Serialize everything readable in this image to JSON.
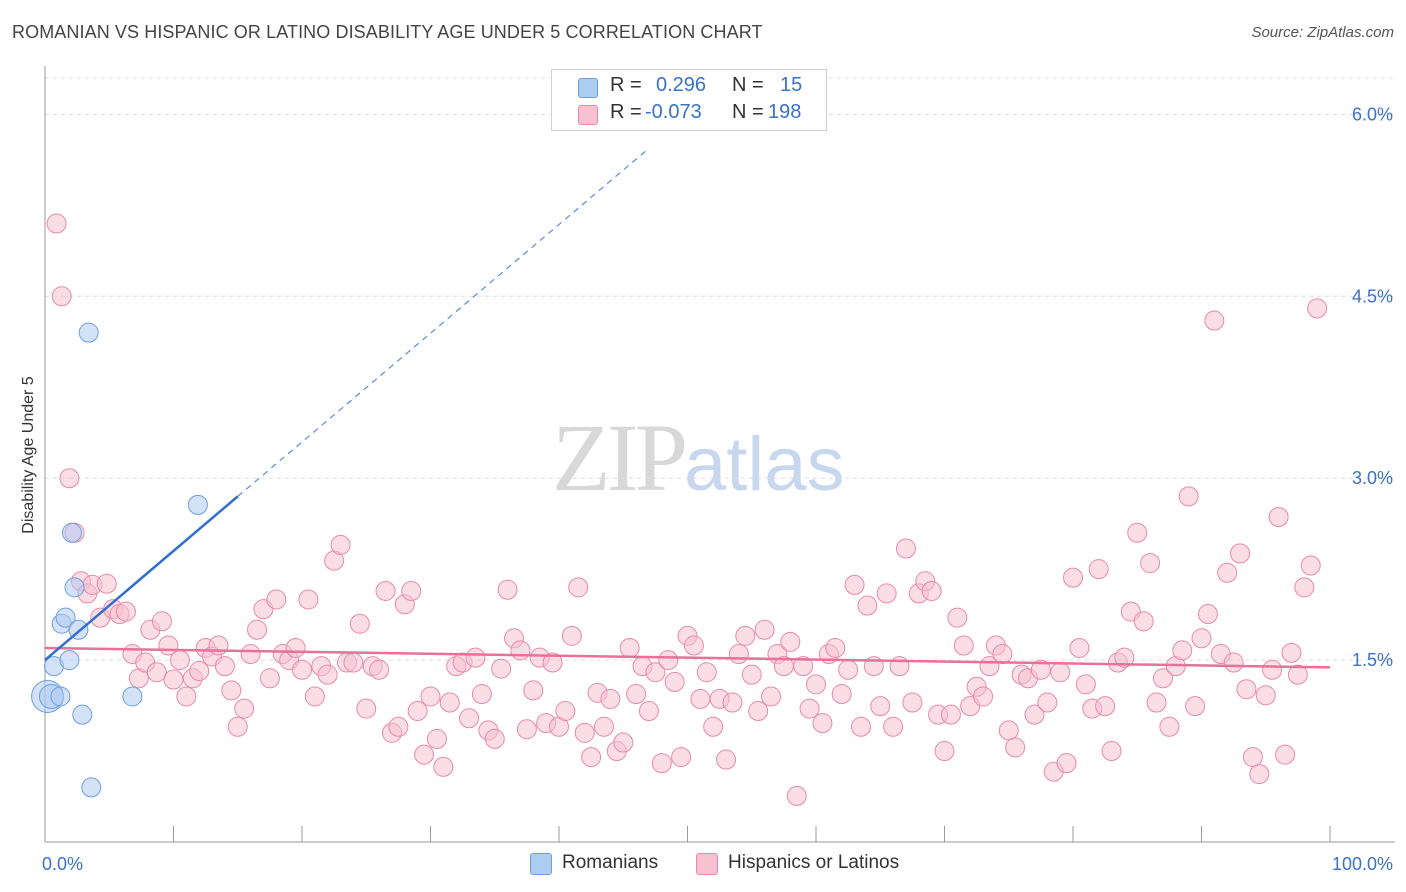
{
  "title": "ROMANIAN VS HISPANIC OR LATINO DISABILITY AGE UNDER 5 CORRELATION CHART",
  "source": "Source: ZipAtlas.com",
  "watermark": {
    "zip": "ZIP",
    "atlas": "atlas"
  },
  "stats": [
    {
      "r_label": "R =",
      "r_value": "0.296",
      "n_label": "N =",
      "n_value": "15",
      "color": "#aecbf0",
      "border": "#6d9fe0"
    },
    {
      "r_label": "R =",
      "r_value": "-0.073",
      "n_label": "N =",
      "n_value": "198",
      "color": "#f7c1d1",
      "border": "#e88aa8"
    }
  ],
  "legend": [
    {
      "label": "Romanians",
      "color": "#aecbf0",
      "border": "#6d9fe0"
    },
    {
      "label": "Hispanics or Latinos",
      "color": "#f7c1d1",
      "border": "#e88aa8"
    }
  ],
  "chart_data": {
    "type": "scatter",
    "title": "ROMANIAN VS HISPANIC OR LATINO DISABILITY AGE UNDER 5 CORRELATION CHART",
    "xlabel": "",
    "ylabel": "Disability Age Under 5",
    "xlim": [
      0,
      100
    ],
    "ylim": [
      0.0,
      6.3
    ],
    "x_tick_labels": [
      "0.0%",
      "100.0%"
    ],
    "y_ticks": [
      1.5,
      3.0,
      4.5,
      6.0
    ],
    "y_tick_labels": [
      "1.5%",
      "3.0%",
      "4.5%",
      "6.0%"
    ],
    "grid": "horizontal dashed",
    "series": [
      {
        "name": "Romanians",
        "color": "#aecbf0",
        "edge": "#6d9fe0",
        "trend": {
          "x0": 0,
          "y0": 1.5,
          "x1": 15,
          "y1": 2.85,
          "dashed_to_x": 47,
          "dashed_to_y": 5.72,
          "color": "#2f6fd1"
        },
        "points": [
          {
            "x": 0.2,
            "y": 1.2,
            "size": 16
          },
          {
            "x": 0.5,
            "y": 1.2,
            "size": 12
          },
          {
            "x": 0.7,
            "y": 1.45
          },
          {
            "x": 1.2,
            "y": 1.2
          },
          {
            "x": 1.3,
            "y": 1.8
          },
          {
            "x": 1.6,
            "y": 1.85
          },
          {
            "x": 1.9,
            "y": 1.5
          },
          {
            "x": 2.1,
            "y": 2.55
          },
          {
            "x": 2.3,
            "y": 2.1
          },
          {
            "x": 2.6,
            "y": 1.75
          },
          {
            "x": 2.9,
            "y": 1.05
          },
          {
            "x": 3.4,
            "y": 4.2
          },
          {
            "x": 3.6,
            "y": 0.45
          },
          {
            "x": 6.8,
            "y": 1.2
          },
          {
            "x": 11.9,
            "y": 2.78
          }
        ]
      },
      {
        "name": "Hispanics or Latinos",
        "color": "#f7c1d1",
        "edge": "#e88aa8",
        "trend": {
          "x0": 0,
          "y0": 1.6,
          "x1": 100,
          "y1": 1.44,
          "color": "#e8709a"
        },
        "points": [
          {
            "x": 0.9,
            "y": 5.1
          },
          {
            "x": 1.3,
            "y": 4.5
          },
          {
            "x": 1.9,
            "y": 3.0
          },
          {
            "x": 2.3,
            "y": 2.55
          },
          {
            "x": 2.8,
            "y": 2.15
          },
          {
            "x": 3.3,
            "y": 2.05
          },
          {
            "x": 3.7,
            "y": 2.12
          },
          {
            "x": 4.3,
            "y": 1.85
          },
          {
            "x": 4.8,
            "y": 2.13
          },
          {
            "x": 5.3,
            "y": 1.92
          },
          {
            "x": 5.8,
            "y": 1.88
          },
          {
            "x": 6.3,
            "y": 1.9
          },
          {
            "x": 6.8,
            "y": 1.55
          },
          {
            "x": 7.3,
            "y": 1.35
          },
          {
            "x": 7.8,
            "y": 1.48
          },
          {
            "x": 8.2,
            "y": 1.75
          },
          {
            "x": 8.7,
            "y": 1.4
          },
          {
            "x": 9.1,
            "y": 1.82
          },
          {
            "x": 9.6,
            "y": 1.62
          },
          {
            "x": 10.0,
            "y": 1.34
          },
          {
            "x": 10.5,
            "y": 1.5
          },
          {
            "x": 11.0,
            "y": 1.2
          },
          {
            "x": 11.5,
            "y": 1.35
          },
          {
            "x": 12.0,
            "y": 1.41
          },
          {
            "x": 12.5,
            "y": 1.6
          },
          {
            "x": 13.0,
            "y": 1.53
          },
          {
            "x": 13.5,
            "y": 1.62
          },
          {
            "x": 14.0,
            "y": 1.45
          },
          {
            "x": 14.5,
            "y": 1.25
          },
          {
            "x": 15.0,
            "y": 0.95
          },
          {
            "x": 15.5,
            "y": 1.1
          },
          {
            "x": 16.0,
            "y": 1.55
          },
          {
            "x": 16.5,
            "y": 1.75
          },
          {
            "x": 17.0,
            "y": 1.92
          },
          {
            "x": 17.5,
            "y": 1.35
          },
          {
            "x": 18.0,
            "y": 2.0
          },
          {
            "x": 18.5,
            "y": 1.55
          },
          {
            "x": 19.0,
            "y": 1.5
          },
          {
            "x": 19.5,
            "y": 1.6
          },
          {
            "x": 20.0,
            "y": 1.42
          },
          {
            "x": 20.5,
            "y": 2.0
          },
          {
            "x": 21.0,
            "y": 1.2
          },
          {
            "x": 21.5,
            "y": 1.45
          },
          {
            "x": 22.0,
            "y": 1.38
          },
          {
            "x": 22.5,
            "y": 2.32
          },
          {
            "x": 23.0,
            "y": 2.45
          },
          {
            "x": 23.5,
            "y": 1.48
          },
          {
            "x": 24.0,
            "y": 1.48
          },
          {
            "x": 24.5,
            "y": 1.8
          },
          {
            "x": 25.0,
            "y": 1.1
          },
          {
            "x": 25.5,
            "y": 1.45
          },
          {
            "x": 26.0,
            "y": 1.42
          },
          {
            "x": 26.5,
            "y": 2.07
          },
          {
            "x": 27.0,
            "y": 0.9
          },
          {
            "x": 27.5,
            "y": 0.95
          },
          {
            "x": 28.0,
            "y": 1.96
          },
          {
            "x": 28.5,
            "y": 2.07
          },
          {
            "x": 29.0,
            "y": 1.08
          },
          {
            "x": 29.5,
            "y": 0.72
          },
          {
            "x": 30.0,
            "y": 1.2
          },
          {
            "x": 30.5,
            "y": 0.85
          },
          {
            "x": 31.0,
            "y": 0.62
          },
          {
            "x": 31.5,
            "y": 1.15
          },
          {
            "x": 32.0,
            "y": 1.45
          },
          {
            "x": 32.5,
            "y": 1.48
          },
          {
            "x": 33.0,
            "y": 1.02
          },
          {
            "x": 33.5,
            "y": 1.52
          },
          {
            "x": 34.0,
            "y": 1.22
          },
          {
            "x": 34.5,
            "y": 0.92
          },
          {
            "x": 35.0,
            "y": 0.85
          },
          {
            "x": 35.5,
            "y": 1.43
          },
          {
            "x": 36.0,
            "y": 2.08
          },
          {
            "x": 36.5,
            "y": 1.68
          },
          {
            "x": 37.0,
            "y": 1.58
          },
          {
            "x": 37.5,
            "y": 0.93
          },
          {
            "x": 38.0,
            "y": 1.25
          },
          {
            "x": 38.5,
            "y": 1.52
          },
          {
            "x": 39.0,
            "y": 0.98
          },
          {
            "x": 39.5,
            "y": 1.48
          },
          {
            "x": 40.0,
            "y": 0.95
          },
          {
            "x": 40.5,
            "y": 1.08
          },
          {
            "x": 41.0,
            "y": 1.7
          },
          {
            "x": 41.5,
            "y": 2.1
          },
          {
            "x": 42.0,
            "y": 0.9
          },
          {
            "x": 42.5,
            "y": 0.7
          },
          {
            "x": 43.0,
            "y": 1.23
          },
          {
            "x": 43.5,
            "y": 0.95
          },
          {
            "x": 44.0,
            "y": 1.18
          },
          {
            "x": 44.5,
            "y": 0.75
          },
          {
            "x": 45.0,
            "y": 0.82
          },
          {
            "x": 45.5,
            "y": 1.6
          },
          {
            "x": 46.0,
            "y": 1.22
          },
          {
            "x": 46.5,
            "y": 1.45
          },
          {
            "x": 47.0,
            "y": 1.08
          },
          {
            "x": 47.5,
            "y": 1.4
          },
          {
            "x": 48.0,
            "y": 0.65
          },
          {
            "x": 48.5,
            "y": 1.5
          },
          {
            "x": 49.0,
            "y": 1.32
          },
          {
            "x": 49.5,
            "y": 0.7
          },
          {
            "x": 50.0,
            "y": 1.7
          },
          {
            "x": 50.5,
            "y": 1.62
          },
          {
            "x": 51.0,
            "y": 1.18
          },
          {
            "x": 51.5,
            "y": 1.4
          },
          {
            "x": 52.0,
            "y": 0.95
          },
          {
            "x": 52.5,
            "y": 1.18
          },
          {
            "x": 53.0,
            "y": 0.68
          },
          {
            "x": 53.5,
            "y": 1.15
          },
          {
            "x": 54.0,
            "y": 1.55
          },
          {
            "x": 54.5,
            "y": 1.7
          },
          {
            "x": 55.0,
            "y": 1.38
          },
          {
            "x": 55.5,
            "y": 1.08
          },
          {
            "x": 56.0,
            "y": 1.75
          },
          {
            "x": 56.5,
            "y": 1.2
          },
          {
            "x": 57.0,
            "y": 1.55
          },
          {
            "x": 57.5,
            "y": 1.45
          },
          {
            "x": 58.0,
            "y": 1.65
          },
          {
            "x": 58.5,
            "y": 0.38
          },
          {
            "x": 59.0,
            "y": 1.45
          },
          {
            "x": 59.5,
            "y": 1.1
          },
          {
            "x": 60.0,
            "y": 1.3
          },
          {
            "x": 60.5,
            "y": 0.98
          },
          {
            "x": 61.0,
            "y": 1.55
          },
          {
            "x": 61.5,
            "y": 1.6
          },
          {
            "x": 62.0,
            "y": 1.22
          },
          {
            "x": 62.5,
            "y": 1.42
          },
          {
            "x": 63.0,
            "y": 2.12
          },
          {
            "x": 63.5,
            "y": 0.95
          },
          {
            "x": 64.0,
            "y": 1.95
          },
          {
            "x": 64.5,
            "y": 1.45
          },
          {
            "x": 65.0,
            "y": 1.12
          },
          {
            "x": 65.5,
            "y": 2.05
          },
          {
            "x": 66.0,
            "y": 0.95
          },
          {
            "x": 66.5,
            "y": 1.45
          },
          {
            "x": 67.0,
            "y": 2.42
          },
          {
            "x": 67.5,
            "y": 1.15
          },
          {
            "x": 68.0,
            "y": 2.05
          },
          {
            "x": 68.5,
            "y": 2.15
          },
          {
            "x": 69.0,
            "y": 2.07
          },
          {
            "x": 69.5,
            "y": 1.05
          },
          {
            "x": 70.0,
            "y": 0.75
          },
          {
            "x": 70.5,
            "y": 1.05
          },
          {
            "x": 71.0,
            "y": 1.85
          },
          {
            "x": 71.5,
            "y": 1.62
          },
          {
            "x": 72.0,
            "y": 1.12
          },
          {
            "x": 72.5,
            "y": 1.28
          },
          {
            "x": 73.0,
            "y": 1.2
          },
          {
            "x": 73.5,
            "y": 1.45
          },
          {
            "x": 74.0,
            "y": 1.62
          },
          {
            "x": 74.5,
            "y": 1.55
          },
          {
            "x": 75.0,
            "y": 0.92
          },
          {
            "x": 75.5,
            "y": 0.78
          },
          {
            "x": 76.0,
            "y": 1.38
          },
          {
            "x": 76.5,
            "y": 1.35
          },
          {
            "x": 77.0,
            "y": 1.05
          },
          {
            "x": 77.5,
            "y": 1.42
          },
          {
            "x": 78.0,
            "y": 1.15
          },
          {
            "x": 78.5,
            "y": 0.58
          },
          {
            "x": 79.0,
            "y": 1.4
          },
          {
            "x": 79.5,
            "y": 0.65
          },
          {
            "x": 80.0,
            "y": 2.18
          },
          {
            "x": 80.5,
            "y": 1.6
          },
          {
            "x": 81.0,
            "y": 1.3
          },
          {
            "x": 81.5,
            "y": 1.1
          },
          {
            "x": 82.0,
            "y": 2.25
          },
          {
            "x": 82.5,
            "y": 1.12
          },
          {
            "x": 83.0,
            "y": 0.75
          },
          {
            "x": 83.5,
            "y": 1.48
          },
          {
            "x": 84.0,
            "y": 1.52
          },
          {
            "x": 84.5,
            "y": 1.9
          },
          {
            "x": 85.0,
            "y": 2.55
          },
          {
            "x": 85.5,
            "y": 1.82
          },
          {
            "x": 86.0,
            "y": 2.3
          },
          {
            "x": 86.5,
            "y": 1.15
          },
          {
            "x": 87.0,
            "y": 1.35
          },
          {
            "x": 87.5,
            "y": 0.95
          },
          {
            "x": 88.0,
            "y": 1.45
          },
          {
            "x": 88.5,
            "y": 1.58
          },
          {
            "x": 89.0,
            "y": 2.85
          },
          {
            "x": 89.5,
            "y": 1.12
          },
          {
            "x": 90.0,
            "y": 1.68
          },
          {
            "x": 90.5,
            "y": 1.88
          },
          {
            "x": 91.0,
            "y": 4.3
          },
          {
            "x": 91.5,
            "y": 1.55
          },
          {
            "x": 92.0,
            "y": 2.22
          },
          {
            "x": 92.5,
            "y": 1.48
          },
          {
            "x": 93.0,
            "y": 2.38
          },
          {
            "x": 93.5,
            "y": 1.26
          },
          {
            "x": 94.0,
            "y": 0.7
          },
          {
            "x": 94.5,
            "y": 0.56
          },
          {
            "x": 95.0,
            "y": 1.21
          },
          {
            "x": 95.5,
            "y": 1.42
          },
          {
            "x": 96.0,
            "y": 2.68
          },
          {
            "x": 96.5,
            "y": 0.72
          },
          {
            "x": 97.0,
            "y": 1.56
          },
          {
            "x": 97.5,
            "y": 1.38
          },
          {
            "x": 98.0,
            "y": 2.1
          },
          {
            "x": 98.5,
            "y": 2.28
          },
          {
            "x": 99.0,
            "y": 4.4
          }
        ]
      }
    ]
  }
}
